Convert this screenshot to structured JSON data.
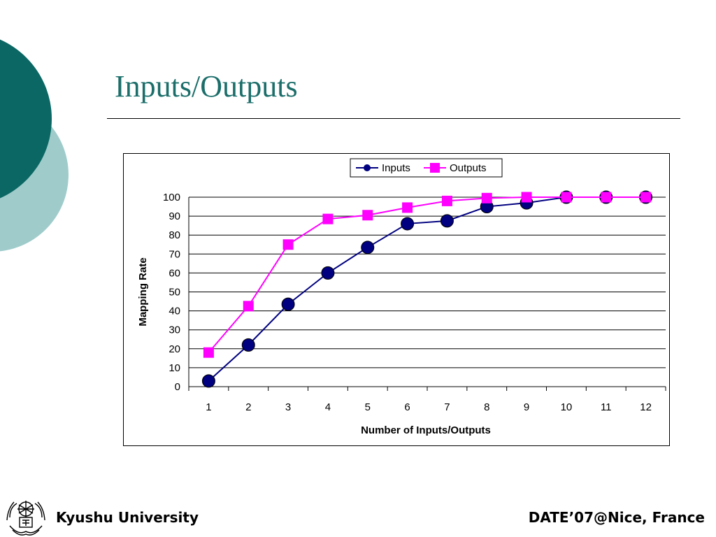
{
  "slide": {
    "title": "Inputs/Outputs",
    "footer_left": "Kyushu University",
    "footer_right": "DATE’07@Nice, France",
    "accent_color": "#1b6e6a",
    "circle_dark": "#0a6763",
    "circle_light": "#9fcccb"
  },
  "chart_data": {
    "type": "line",
    "xlabel": "Number of Inputs/Outputs",
    "ylabel": "Mapping Rate",
    "categories": [
      "1",
      "2",
      "3",
      "4",
      "5",
      "6",
      "7",
      "8",
      "9",
      "10",
      "11",
      "12"
    ],
    "ylim": [
      0,
      100
    ],
    "yticks": [
      "0",
      "10",
      "20",
      "30",
      "40",
      "50",
      "60",
      "70",
      "80",
      "90",
      "100"
    ],
    "grid": true,
    "legend_position": "top-center",
    "series": [
      {
        "name": "Inputs",
        "color": "#000080",
        "marker": "circle",
        "values": [
          3,
          22,
          43.5,
          60,
          73.5,
          86,
          87.5,
          95,
          97,
          100,
          100,
          100
        ]
      },
      {
        "name": "Outputs",
        "color": "#ff00ff",
        "marker": "square",
        "values": [
          18,
          42.5,
          75,
          88.5,
          90.5,
          94.5,
          98,
          99.5,
          100,
          100,
          100,
          100
        ]
      }
    ]
  }
}
